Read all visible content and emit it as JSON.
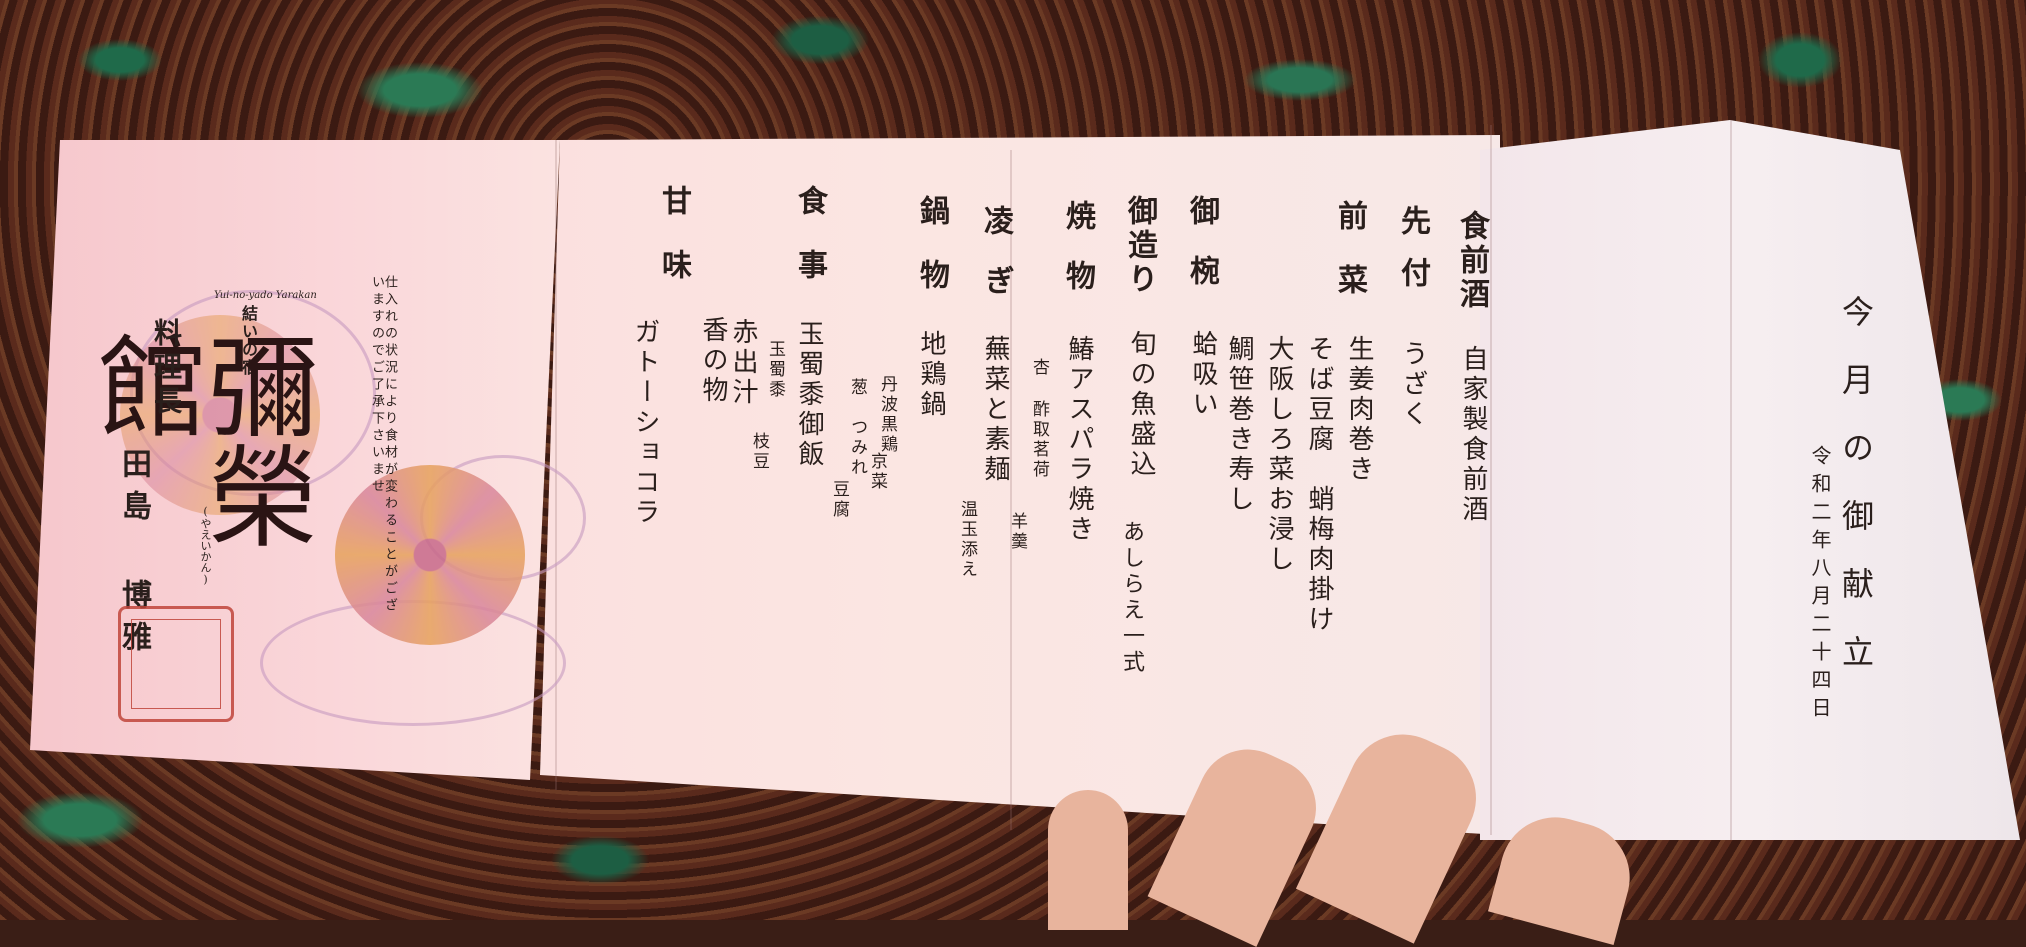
{
  "title": "今月の御献立",
  "date": "令和二年八月二十四日",
  "courses": [
    {
      "course": "食前酒",
      "dish": "自家製食前酒"
    },
    {
      "course": "先付",
      "dish": "うざく"
    },
    {
      "course": "前菜",
      "dish1": "生姜肉巻き",
      "dish2": "そば豆腐　蛸梅肉掛け",
      "dish3": "大阪しろ菜お浸し",
      "dish4": "鯛笹巻き寿し"
    },
    {
      "course": "御椀",
      "dish": "蛤吸い"
    },
    {
      "course": "御造り",
      "dish1": "旬の魚盛込",
      "dish2": "あしらえ一式"
    },
    {
      "course": "焼物",
      "dish1": "鰆アスパラ焼き",
      "small1": "杏",
      "small2": "酢取茗荷",
      "small3": "羊羹"
    },
    {
      "course": "凌ぎ",
      "dish1": "蕪菜と素麺",
      "small1": "温玉添え"
    },
    {
      "course": "鍋物",
      "dish1": "地鶏鍋",
      "small1": "丹波黒鶏",
      "small2": "京菜",
      "small3": "葱",
      "small4": "つみれ",
      "small5": "豆腐"
    },
    {
      "course": "食事",
      "dish1": "玉蜀黍御飯",
      "small1": "玉蜀黍",
      "small2": "枝豆",
      "dish2": "赤出汁",
      "dish3": "香の物"
    },
    {
      "course": "甘味",
      "dish1": "ガトーショコラ"
    }
  ],
  "notice": "仕入れの状況により食材が変わることがございますのでご了承下さいませ",
  "inn": {
    "prefix": "結いの宿",
    "romaji": "Yui-no-yado Yarakan",
    "name": "彌榮館",
    "reading": "(やえいかん)",
    "chef_title": "料理長",
    "chef_name": "田島 博雅"
  }
}
